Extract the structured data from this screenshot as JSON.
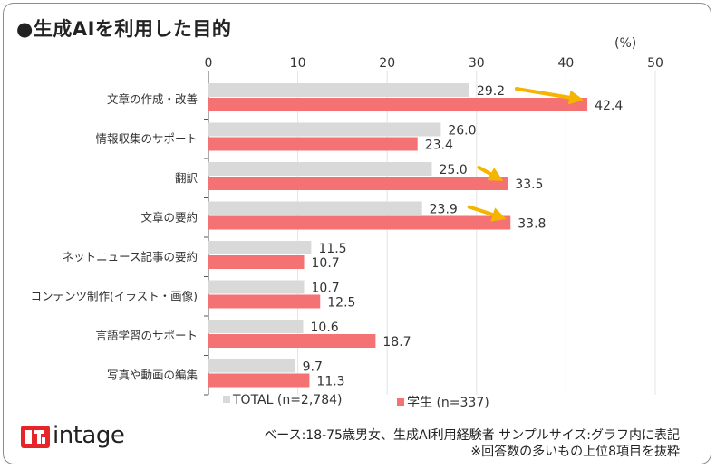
{
  "header": {
    "title": "●生成AIを利用した目的"
  },
  "chart_data": {
    "type": "bar",
    "orientation": "horizontal",
    "title": "●生成AIを利用した目的",
    "unit_label": "(%)",
    "xlim": [
      0,
      50
    ],
    "ticks": [
      "0",
      "10",
      "20",
      "30",
      "40",
      "50"
    ],
    "categories": [
      "文章の作成・改善",
      "情報収集のサポート",
      "翻訳",
      "文章の要約",
      "ネットニュース記事の要約",
      "コンテンツ制作(イラスト・画像)",
      "言語学習のサポート",
      "写真や動画の編集"
    ],
    "series": [
      {
        "name": "TOTAL",
        "legend_label": "TOTAL (n=2,784)",
        "color": "#d9d9d9",
        "values": [
          29.2,
          26.0,
          25.0,
          23.9,
          11.5,
          10.7,
          10.6,
          9.7
        ],
        "labels": [
          "29.2",
          "26.0",
          "25.0",
          "23.9",
          "11.5",
          "10.7",
          "10.6",
          "9.7"
        ]
      },
      {
        "name": "学生",
        "legend_label": "学生 (n=337)",
        "color": "#f47174",
        "values": [
          42.4,
          23.4,
          33.5,
          33.8,
          10.7,
          12.5,
          18.7,
          11.3
        ],
        "labels": [
          "42.4",
          "23.4",
          "33.5",
          "33.8",
          "10.7",
          "12.5",
          "18.7",
          "11.3"
        ]
      }
    ],
    "highlight_arrows_on": [
      "文章の作成・改善",
      "翻訳",
      "文章の要約"
    ],
    "arrow_color": "#f5b400",
    "grid": true
  },
  "footer": {
    "brand": "intage",
    "note_line1": "ベース:18-75歳男女、生成AI利用経験者 サンプルサイズ:グラフ内に表記",
    "note_line2": "※回答数の多いもの上位8項目を抜粋"
  }
}
